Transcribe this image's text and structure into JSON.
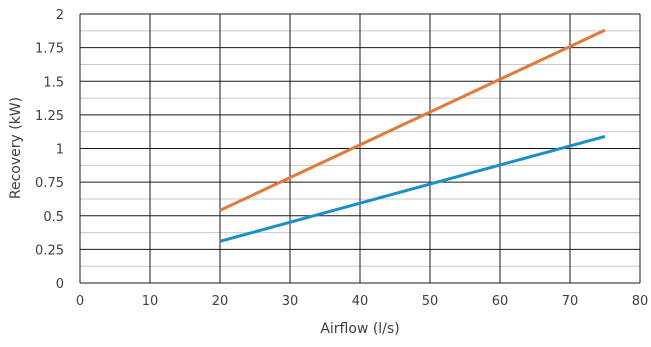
{
  "chart_data": {
    "type": "line",
    "title": "",
    "xlabel": "Airflow (l/s)",
    "ylabel": "Recovery (kW)",
    "xlim": [
      0,
      80
    ],
    "ylim": [
      0,
      2
    ],
    "xticks": [
      "0",
      "10",
      "20",
      "30",
      "40",
      "50",
      "60",
      "70",
      "80"
    ],
    "yticks": [
      "0",
      "0.25",
      "0.5",
      "0.75",
      "1",
      "1.25",
      "1.5",
      "1.75",
      "2"
    ],
    "grid": {
      "major_vertical": true,
      "major_horizontal": true,
      "minor_horizontal": true
    },
    "legend": "none",
    "series": [
      {
        "color": "#e07b39",
        "x": [
          20,
          75
        ],
        "y": [
          0.54,
          1.88
        ]
      },
      {
        "color": "#1a8fc9",
        "x": [
          20,
          75
        ],
        "y": [
          0.31,
          1.09
        ]
      }
    ]
  }
}
